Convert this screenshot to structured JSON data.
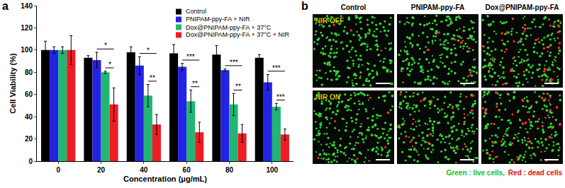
{
  "chart_data": {
    "type": "bar",
    "panel": "a",
    "x_label": "Concentration (μg/mL)",
    "y_label": "Cell Viability (%)",
    "categories": [
      "0",
      "20",
      "40",
      "60",
      "80",
      "100"
    ],
    "series": [
      {
        "name": "Control",
        "color": "#000000",
        "values": [
          100,
          93,
          98,
          97,
          96,
          93
        ],
        "errors": [
          8,
          2,
          5,
          8,
          8,
          3
        ]
      },
      {
        "name": "PNIPAM-ppy-FA + NIR",
        "color": "#2323e6",
        "values": [
          100,
          91,
          86,
          85,
          82,
          71
        ],
        "errors": [
          3,
          7,
          8,
          3,
          1,
          7
        ]
      },
      {
        "name": "Dox@PNIPAM-ppy-FA + 37°C",
        "color": "#22b573",
        "values": [
          100,
          80,
          59,
          54,
          51,
          49
        ],
        "errors": [
          3,
          1,
          10,
          10,
          10,
          3
        ]
      },
      {
        "name": "Dox@PNIPAM-ppy-FA + 37°C + NIR",
        "color": "#ee1c24",
        "values": [
          100,
          51,
          33,
          26,
          25,
          24
        ],
        "errors": [
          13,
          15,
          9,
          9,
          8,
          5
        ]
      }
    ],
    "annotations": [
      {
        "category": "20",
        "from": "PNIPAM-ppy-FA + NIR",
        "to": "Dox@PNIPAM-ppy-FA + 37°C + NIR",
        "text": "*"
      },
      {
        "category": "20",
        "from": "Dox@PNIPAM-ppy-FA + 37°C",
        "to": "Dox@PNIPAM-ppy-FA + 37°C + NIR",
        "text": "*"
      },
      {
        "category": "40",
        "from": "PNIPAM-ppy-FA + NIR",
        "to": "Dox@PNIPAM-ppy-FA + 37°C + NIR",
        "text": "*"
      },
      {
        "category": "40",
        "from": "Dox@PNIPAM-ppy-FA + 37°C",
        "to": "Dox@PNIPAM-ppy-FA + 37°C + NIR",
        "text": "**"
      },
      {
        "category": "60",
        "from": "PNIPAM-ppy-FA + NIR",
        "to": "Dox@PNIPAM-ppy-FA + 37°C + NIR",
        "text": "***"
      },
      {
        "category": "60",
        "from": "Dox@PNIPAM-ppy-FA + 37°C",
        "to": "Dox@PNIPAM-ppy-FA + 37°C + NIR",
        "text": "**"
      },
      {
        "category": "80",
        "from": "PNIPAM-ppy-FA + NIR",
        "to": "Dox@PNIPAM-ppy-FA + 37°C + NIR",
        "text": "***"
      },
      {
        "category": "80",
        "from": "Dox@PNIPAM-ppy-FA + 37°C",
        "to": "Dox@PNIPAM-ppy-FA + 37°C + NIR",
        "text": "**"
      },
      {
        "category": "100",
        "from": "PNIPAM-ppy-FA + NIR",
        "to": "Dox@PNIPAM-ppy-FA + 37°C + NIR",
        "text": "***"
      },
      {
        "category": "100",
        "from": "Dox@PNIPAM-ppy-FA + 37°C",
        "to": "Dox@PNIPAM-ppy-FA + 37°C + NIR",
        "text": "***"
      }
    ],
    "ylim": [
      0,
      140
    ],
    "yticks": [
      0,
      20,
      40,
      60,
      80,
      100,
      120,
      140
    ],
    "grid": false,
    "legend": "top right"
  },
  "image_panel": {
    "panel": "b",
    "columns": [
      "Control",
      "PNIPAM-ppy-FA",
      "Dox@PNIPAM-ppy-FA"
    ],
    "rows": [
      "NIR OFF",
      "NIR ON"
    ],
    "caption": [
      {
        "text": "Green : live cells,",
        "color": "#16c016"
      },
      {
        "text": "Red : dead cells",
        "color": "#e01010"
      }
    ]
  }
}
